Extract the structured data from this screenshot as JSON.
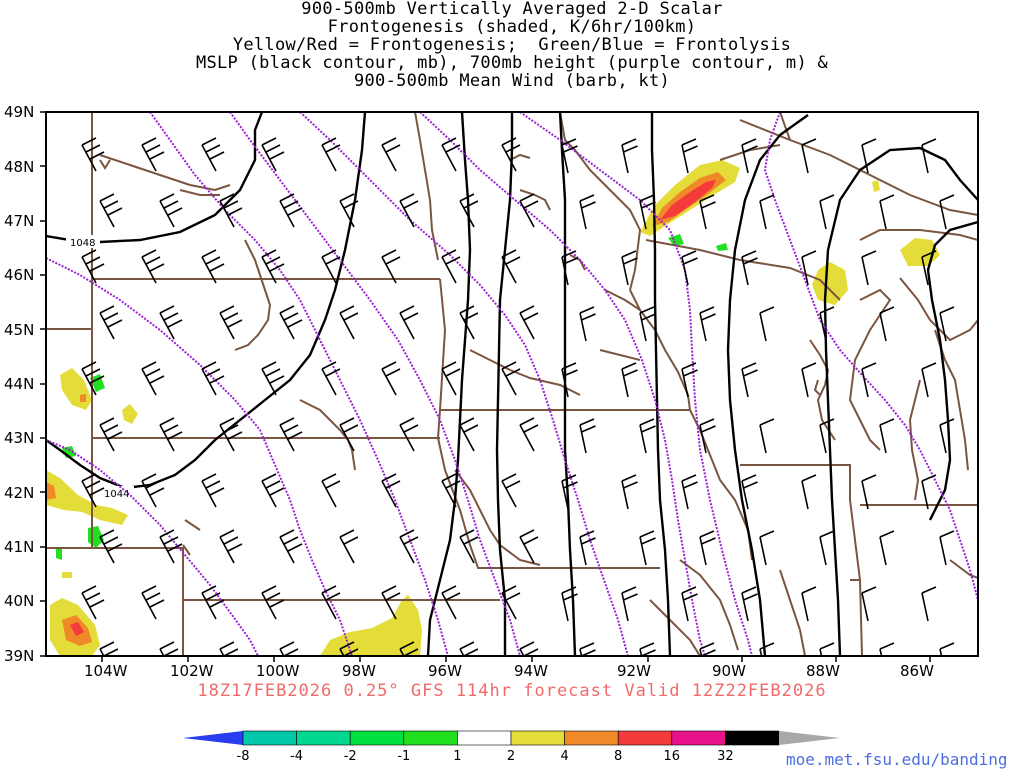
{
  "title_lines": [
    "900-500mb Vertically Averaged 2-D Scalar",
    "Frontogenesis (shaded, K/6hr/100km)",
    "Yellow/Red = Frontogenesis;  Green/Blue = Frontolysis",
    "MSLP (black contour, mb), 700mb height (purple contour, m) &",
    "900-500mb Mean Wind (barb, kt)"
  ],
  "map": {
    "lat_labels": [
      "49N",
      "48N",
      "47N",
      "46N",
      "45N",
      "44N",
      "43N",
      "42N",
      "41N",
      "40N",
      "39N"
    ],
    "lon_labels": [
      "104W",
      "102W",
      "100W",
      "98W",
      "96W",
      "94W",
      "92W",
      "90W",
      "88W",
      "86W"
    ],
    "contour_labels": [
      "1048",
      "1044"
    ],
    "colors": {
      "mslp_contour": "#000000",
      "height_contour": "#9b1fd6",
      "boundaries": "#7a5540",
      "barbs": "#000000"
    }
  },
  "valid_text": "18Z17FEB2026 0.25° GFS 114hr forecast Valid 12Z22FEB2026",
  "colorbar": {
    "labels": [
      "-8",
      "-4",
      "-2",
      "-1",
      "1",
      "2",
      "4",
      "8",
      "16",
      "32"
    ],
    "colors": [
      "#2a3cf0",
      "#00c8a8",
      "#00d890",
      "#00e040",
      "#20e020",
      "#ffffff",
      "#e4dc38",
      "#f08a28",
      "#f43a3a",
      "#e8128a",
      "#000000",
      "#a8a8a8"
    ]
  },
  "credit": "moe.met.fsu.edu/banding"
}
